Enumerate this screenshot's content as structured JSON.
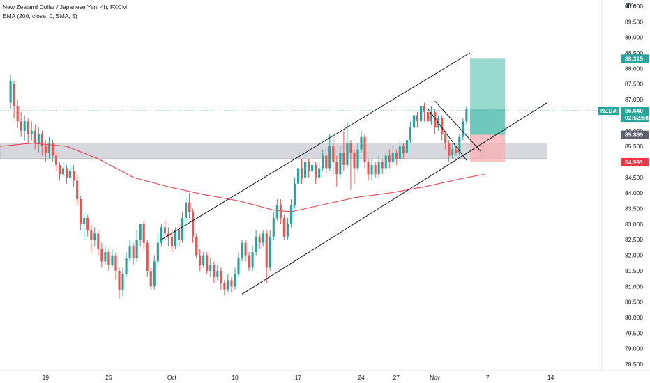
{
  "header": {
    "title": "New Zealand Dollar / Japanese Yen, 4h, FXCM",
    "indicator": "EMA (200, close, 0, SMA, 5)"
  },
  "colors": {
    "up": "#26a69a",
    "down": "#ef5350",
    "ema": "#f23645",
    "zone": "#c9cbd3",
    "target": "#7fd1c2",
    "stop": "#f7b2b4",
    "price_tag": "#26a69a",
    "stop_tag": "#f23645",
    "mid_tag": "#5d606b"
  },
  "chart_data": {
    "type": "candlestick",
    "symbol": "NZDJPY",
    "currency": "JPY",
    "ylim": [
      78.3,
      90.2
    ],
    "y_ticks": [
      "78.500",
      "79.000",
      "79.500",
      "80.000",
      "80.500",
      "81.000",
      "81.500",
      "82.000",
      "82.500",
      "83.000",
      "83.500",
      "84.000",
      "84.500",
      "85.000",
      "85.500",
      "86.000",
      "86.500",
      "87.000",
      "87.500",
      "88.000",
      "88.500",
      "89.000",
      "89.500",
      "90.000"
    ],
    "x_ticks": [
      "19",
      "26",
      "Oct",
      "10",
      "17",
      "24",
      "27",
      "Nov",
      "7",
      "14"
    ],
    "x_tick_index": [
      10,
      28,
      46,
      64,
      82,
      100,
      110,
      121,
      136,
      154
    ],
    "x_range": [
      -3,
      168
    ],
    "last_price": "86.640",
    "countdown": "02:52:58",
    "target_label": "88.315",
    "entry_label": "85.869",
    "stop_label": "84.991",
    "position": {
      "entry": 85.869,
      "target": 88.315,
      "stop": 84.991,
      "from_index": 131,
      "to_index": 141
    },
    "support_zone": {
      "low": 85.1,
      "high": 85.6
    },
    "channel_up": {
      "upper": [
        [
          43,
          82.5
        ],
        [
          131,
          88.5
        ]
      ],
      "lower": [
        [
          66,
          80.75
        ],
        [
          153,
          86.9
        ]
      ]
    },
    "wedge": {
      "upper": [
        [
          121,
          86.95
        ],
        [
          134,
          85.35
        ]
      ],
      "lower": [
        [
          119,
          86.7
        ],
        [
          130,
          85.05
        ]
      ]
    },
    "ema200": [
      [
        -3,
        85.5
      ],
      [
        6,
        85.6
      ],
      [
        16,
        85.5
      ],
      [
        25,
        85.1
      ],
      [
        35,
        84.5
      ],
      [
        45,
        84.2
      ],
      [
        55,
        83.95
      ],
      [
        65,
        83.75
      ],
      [
        75,
        83.45
      ],
      [
        80,
        83.4
      ],
      [
        88,
        83.6
      ],
      [
        98,
        83.85
      ],
      [
        108,
        84.0
      ],
      [
        118,
        84.2
      ],
      [
        128,
        84.45
      ],
      [
        135,
        84.6
      ]
    ],
    "candles": [
      [
        86.9,
        87.6,
        87.8,
        86.7
      ],
      [
        87.5,
        86.8,
        87.6,
        86.4
      ],
      [
        86.8,
        86.3,
        87.0,
        86.1
      ],
      [
        86.3,
        86.0,
        86.6,
        85.8
      ],
      [
        86.0,
        86.3,
        86.5,
        85.7
      ],
      [
        86.3,
        85.9,
        86.4,
        85.6
      ],
      [
        85.9,
        86.0,
        86.3,
        85.7
      ],
      [
        86.0,
        85.6,
        86.2,
        85.4
      ],
      [
        85.6,
        85.9,
        86.1,
        85.3
      ],
      [
        85.9,
        85.5,
        86.0,
        85.2
      ],
      [
        85.5,
        85.3,
        85.7,
        85.0
      ],
      [
        85.3,
        85.6,
        85.8,
        85.1
      ],
      [
        85.6,
        85.2,
        85.7,
        85.0
      ],
      [
        85.2,
        84.9,
        85.3,
        84.7
      ],
      [
        84.9,
        84.6,
        85.0,
        84.4
      ],
      [
        84.6,
        84.8,
        85.0,
        84.5
      ],
      [
        84.8,
        84.5,
        84.9,
        84.3
      ],
      [
        84.5,
        84.7,
        84.9,
        84.4
      ],
      [
        84.7,
        84.4,
        84.9,
        84.2
      ],
      [
        84.4,
        83.8,
        84.6,
        83.6
      ],
      [
        83.8,
        83.0,
        83.9,
        82.8
      ],
      [
        83.0,
        83.2,
        83.4,
        82.5
      ],
      [
        83.2,
        82.8,
        83.3,
        82.6
      ],
      [
        82.8,
        82.5,
        83.0,
        82.1
      ],
      [
        82.5,
        82.7,
        82.9,
        82.3
      ],
      [
        82.7,
        82.2,
        82.8,
        82.0
      ],
      [
        82.2,
        81.8,
        82.4,
        81.6
      ],
      [
        81.8,
        82.1,
        82.3,
        81.7
      ],
      [
        82.1,
        81.7,
        82.2,
        81.5
      ],
      [
        81.7,
        82.0,
        82.2,
        81.6
      ],
      [
        82.0,
        81.5,
        82.1,
        81.2
      ],
      [
        81.5,
        80.9,
        81.6,
        80.6
      ],
      [
        80.9,
        81.4,
        81.6,
        80.7
      ],
      [
        81.4,
        81.9,
        82.1,
        81.3
      ],
      [
        81.9,
        82.3,
        82.5,
        81.8
      ],
      [
        82.3,
        81.9,
        82.4,
        81.7
      ],
      [
        81.9,
        82.5,
        82.8,
        81.8
      ],
      [
        82.5,
        83.0,
        83.0,
        82.3
      ],
      [
        83.0,
        82.4,
        83.1,
        82.2
      ],
      [
        82.4,
        81.5,
        82.5,
        81.3
      ],
      [
        81.5,
        81.0,
        81.6,
        80.9
      ],
      [
        81.0,
        81.8,
        82.0,
        80.9
      ],
      [
        81.8,
        82.4,
        82.7,
        81.7
      ],
      [
        82.4,
        82.9,
        83.0,
        82.3
      ],
      [
        82.9,
        82.7,
        83.1,
        82.5
      ],
      [
        82.7,
        82.6,
        82.9,
        82.3
      ],
      [
        82.6,
        82.3,
        82.8,
        82.1
      ],
      [
        82.3,
        82.8,
        82.9,
        82.2
      ],
      [
        82.8,
        82.5,
        83.0,
        82.3
      ],
      [
        82.5,
        83.2,
        83.4,
        82.4
      ],
      [
        83.2,
        83.7,
        83.9,
        83.0
      ],
      [
        83.7,
        83.4,
        84.0,
        83.2
      ],
      [
        83.4,
        82.6,
        83.5,
        82.4
      ],
      [
        82.6,
        82.0,
        82.7,
        81.9
      ],
      [
        82.0,
        81.7,
        82.2,
        81.5
      ],
      [
        81.7,
        82.0,
        82.1,
        81.6
      ],
      [
        82.0,
        81.5,
        82.1,
        81.4
      ],
      [
        81.5,
        81.7,
        81.9,
        81.3
      ],
      [
        81.7,
        81.3,
        81.8,
        81.1
      ],
      [
        81.3,
        81.5,
        81.7,
        81.2
      ],
      [
        81.5,
        81.1,
        81.6,
        80.9
      ],
      [
        81.1,
        80.9,
        81.2,
        80.7
      ],
      [
        80.9,
        81.2,
        81.4,
        80.8
      ],
      [
        81.2,
        81.0,
        81.3,
        80.8
      ],
      [
        81.0,
        81.4,
        81.6,
        80.9
      ],
      [
        81.4,
        81.9,
        82.1,
        81.3
      ],
      [
        81.9,
        82.4,
        82.5,
        81.8
      ],
      [
        82.4,
        82.0,
        82.5,
        81.8
      ],
      [
        82.0,
        81.6,
        82.1,
        81.5
      ],
      [
        81.6,
        82.1,
        82.3,
        81.5
      ],
      [
        82.1,
        82.6,
        82.8,
        82.0
      ],
      [
        82.6,
        82.4,
        82.7,
        82.2
      ],
      [
        82.4,
        82.7,
        82.8,
        82.3
      ],
      [
        82.7,
        81.6,
        82.8,
        81.1
      ],
      [
        81.6,
        82.6,
        82.8,
        81.5
      ],
      [
        82.6,
        83.2,
        83.4,
        82.5
      ],
      [
        83.2,
        83.6,
        83.8,
        83.1
      ],
      [
        83.6,
        83.2,
        83.8,
        83.0
      ],
      [
        83.2,
        82.6,
        83.3,
        82.5
      ],
      [
        82.6,
        83.0,
        83.2,
        82.5
      ],
      [
        83.0,
        83.6,
        83.8,
        82.9
      ],
      [
        83.6,
        84.3,
        84.5,
        83.5
      ],
      [
        84.3,
        84.8,
        85.0,
        84.2
      ],
      [
        84.8,
        84.5,
        85.1,
        84.3
      ],
      [
        84.5,
        85.0,
        85.2,
        84.4
      ],
      [
        85.0,
        84.7,
        85.1,
        84.5
      ],
      [
        84.7,
        84.9,
        85.1,
        84.6
      ],
      [
        84.9,
        84.5,
        85.0,
        84.3
      ],
      [
        84.5,
        84.8,
        85.0,
        84.4
      ],
      [
        84.8,
        85.2,
        85.4,
        84.7
      ],
      [
        85.2,
        84.8,
        85.3,
        84.6
      ],
      [
        84.8,
        85.5,
        85.9,
        84.7
      ],
      [
        85.5,
        85.0,
        85.8,
        84.6
      ],
      [
        85.0,
        84.6,
        85.2,
        84.2
      ],
      [
        84.6,
        85.3,
        85.5,
        84.5
      ],
      [
        85.3,
        84.9,
        86.0,
        84.7
      ],
      [
        84.9,
        85.6,
        86.3,
        84.8
      ],
      [
        85.6,
        85.3,
        85.7,
        84.1
      ],
      [
        85.3,
        84.8,
        85.4,
        84.3
      ],
      [
        84.8,
        85.4,
        85.6,
        84.7
      ],
      [
        85.4,
        85.8,
        86.0,
        85.3
      ],
      [
        85.8,
        85.0,
        85.9,
        84.8
      ],
      [
        85.0,
        84.6,
        85.1,
        84.4
      ],
      [
        84.6,
        84.9,
        85.1,
        84.4
      ],
      [
        84.9,
        84.6,
        85.0,
        84.5
      ],
      [
        84.6,
        85.0,
        85.2,
        84.5
      ],
      [
        85.0,
        84.8,
        85.1,
        84.6
      ],
      [
        84.8,
        85.2,
        85.3,
        84.7
      ],
      [
        85.2,
        85.0,
        85.4,
        84.8
      ],
      [
        85.0,
        85.3,
        85.5,
        84.9
      ],
      [
        85.3,
        85.1,
        85.4,
        84.9
      ],
      [
        85.1,
        85.5,
        85.7,
        85.0
      ],
      [
        85.5,
        85.3,
        85.6,
        85.1
      ],
      [
        85.3,
        85.7,
        85.9,
        85.2
      ],
      [
        85.7,
        86.1,
        86.3,
        85.6
      ],
      [
        86.1,
        86.5,
        86.7,
        86.0
      ],
      [
        86.5,
        86.3,
        86.6,
        86.1
      ],
      [
        86.3,
        86.8,
        87.0,
        86.2
      ],
      [
        86.8,
        86.6,
        86.9,
        86.3
      ],
      [
        86.6,
        86.3,
        86.7,
        86.1
      ],
      [
        86.3,
        86.6,
        86.8,
        86.2
      ],
      [
        86.6,
        86.1,
        86.7,
        85.9
      ],
      [
        86.1,
        86.4,
        86.5,
        86.0
      ],
      [
        86.4,
        85.9,
        86.5,
        85.7
      ],
      [
        85.9,
        85.6,
        86.0,
        85.4
      ],
      [
        85.6,
        85.2,
        85.7,
        85.0
      ],
      [
        85.2,
        85.4,
        85.6,
        85.1
      ],
      [
        85.4,
        85.3,
        85.5,
        85.2
      ],
      [
        85.3,
        85.8,
        85.9,
        85.2
      ],
      [
        85.8,
        86.3,
        86.4,
        85.7
      ],
      [
        86.3,
        86.7,
        86.8,
        86.2
      ]
    ]
  }
}
